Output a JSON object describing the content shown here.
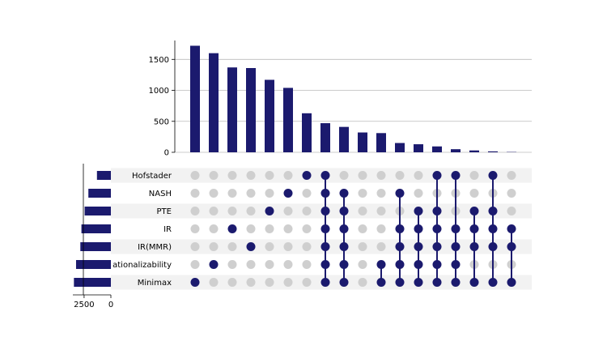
{
  "chart_data": {
    "type": "bar",
    "sets": [
      "Hofstader",
      "NASH",
      "PTE",
      "IR",
      "IR(MMR)",
      "Rationalizability",
      "Minimax"
    ],
    "set_label_display": [
      "Hofstader",
      "NASH",
      "PTE",
      "IR",
      "IR(MMR)",
      "ationalizability",
      "Minimax"
    ],
    "set_sizes": [
      1300,
      2100,
      2450,
      2750,
      2850,
      3250,
      3450
    ],
    "set_size_axis": {
      "ticks": [
        2500,
        0
      ],
      "tick_labels": [
        "2500",
        "0"
      ],
      "xlim": [
        0,
        3500
      ]
    },
    "intersection_axis": {
      "ylim": [
        0,
        1800
      ],
      "ticks": [
        0,
        500,
        1000,
        1500
      ],
      "tick_labels": [
        "0",
        "500",
        "1000",
        "1500"
      ],
      "grid": true
    },
    "intersections": [
      {
        "value": 1720,
        "members": [
          "Minimax"
        ]
      },
      {
        "value": 1600,
        "members": [
          "Rationalizability"
        ]
      },
      {
        "value": 1370,
        "members": [
          "IR"
        ]
      },
      {
        "value": 1360,
        "members": [
          "IR(MMR)"
        ]
      },
      {
        "value": 1170,
        "members": [
          "PTE"
        ]
      },
      {
        "value": 1040,
        "members": [
          "NASH"
        ]
      },
      {
        "value": 630,
        "members": [
          "Hofstader"
        ]
      },
      {
        "value": 470,
        "members": [
          "Hofstader",
          "NASH",
          "PTE",
          "IR",
          "IR(MMR)",
          "Rationalizability",
          "Minimax"
        ]
      },
      {
        "value": 410,
        "members": [
          "NASH",
          "PTE",
          "IR",
          "IR(MMR)",
          "Rationalizability",
          "Minimax"
        ]
      },
      {
        "value": 320,
        "members": []
      },
      {
        "value": 310,
        "members": [
          "Minimax",
          "Rationalizability"
        ]
      },
      {
        "value": 150,
        "members": [
          "NASH",
          "IR",
          "IR(MMR)",
          "Rationalizability",
          "Minimax"
        ]
      },
      {
        "value": 130,
        "members": [
          "PTE",
          "IR",
          "IR(MMR)",
          "Rationalizability",
          "Minimax"
        ]
      },
      {
        "value": 95,
        "members": [
          "Hofstader",
          "PTE",
          "IR",
          "IR(MMR)",
          "Rationalizability",
          "Minimax"
        ]
      },
      {
        "value": 50,
        "members": [
          "Hofstader",
          "IR",
          "IR(MMR)",
          "Rationalizability",
          "Minimax"
        ]
      },
      {
        "value": 30,
        "members": [
          "PTE",
          "IR",
          "IR(MMR)",
          "Minimax"
        ]
      },
      {
        "value": 15,
        "members": [
          "Hofstader",
          "PTE",
          "IR",
          "IR(MMR)",
          "Minimax"
        ]
      },
      {
        "value": 5,
        "members": [
          "IR",
          "IR(MMR)",
          "Minimax"
        ]
      }
    ],
    "colors": {
      "bar": "#1b1a6e",
      "dot_active": "#1b1a6e",
      "dot_inactive": "#cfcfcf",
      "stripe": "#f2f2f2",
      "grid": "#bbbbbb"
    }
  }
}
